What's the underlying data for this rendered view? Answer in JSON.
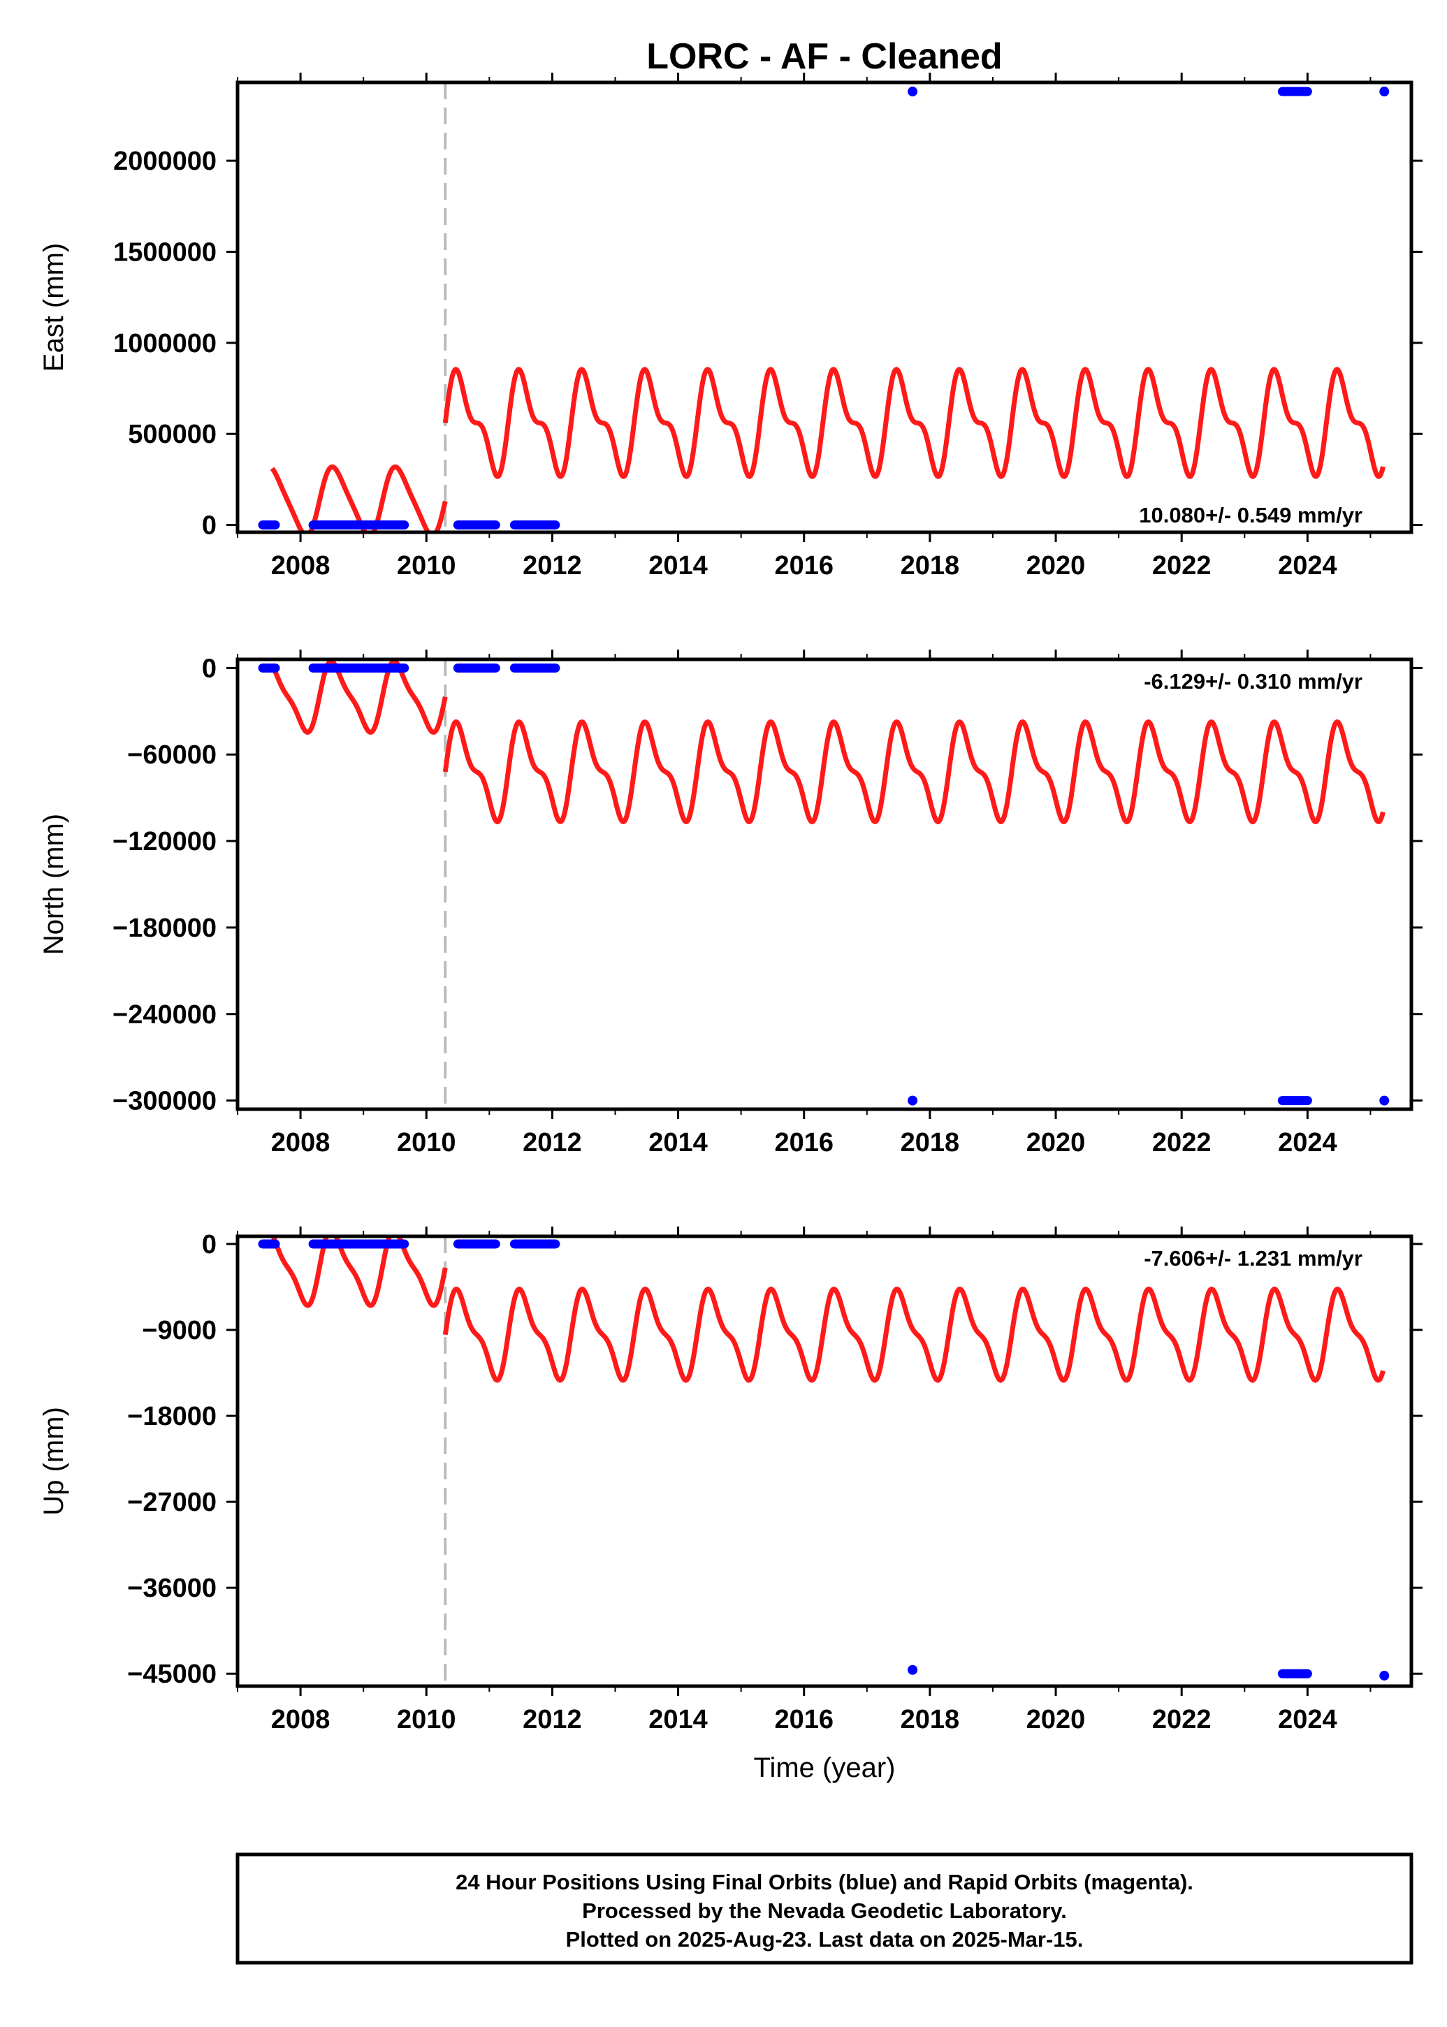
{
  "title": "LORC  - AF - Cleaned",
  "footer": {
    "lines": [
      "24 Hour Positions Using Final Orbits (blue) and Rapid Orbits (magenta).",
      "Processed by the Nevada Geodetic Laboratory.",
      "Plotted on 2025-Aug-23. Last data on 2025-Mar-15."
    ]
  },
  "colors": {
    "model": "#ff1a1a",
    "final_orbits": "#0000ff",
    "break_line": "#bbbbbb"
  },
  "chart_data": [
    {
      "type": "line",
      "component": "East",
      "ylabel": "East (mm)",
      "xlabel": "",
      "rate_label": "10.080+/- 0.549 mm/yr",
      "xlim": [
        2007.0,
        2025.65
      ],
      "ylim": [
        -40000,
        2430000
      ],
      "xticks": [
        2008,
        2010,
        2012,
        2014,
        2016,
        2018,
        2020,
        2022,
        2024
      ],
      "yticks": [
        0,
        500000,
        1000000,
        1500000,
        2000000
      ],
      "break_epoch": 2010.3,
      "model_segments": [
        {
          "start": 2007.55,
          "end": 2010.3,
          "amplitudes": [
            180000,
            30000
          ],
          "offset": 130000,
          "slope": 0
        },
        {
          "start": 2010.3,
          "end": 2025.2,
          "amplitudes": [
            230000,
            110000
          ],
          "offset": 560000,
          "slope": 0
        }
      ],
      "final_orbits": [
        {
          "start": 2007.4,
          "end": 2007.6,
          "value": 0
        },
        {
          "start": 2008.2,
          "end": 2009.65,
          "value": 0
        },
        {
          "start": 2010.5,
          "end": 2011.1,
          "value": 0
        },
        {
          "start": 2011.4,
          "end": 2012.05,
          "value": 0
        },
        {
          "start": 2017.7,
          "end": 2017.75,
          "value": 2380000
        },
        {
          "start": 2023.6,
          "end": 2024.0,
          "value": 2380000
        },
        {
          "start": 2025.2,
          "end": 2025.24,
          "value": 2380000
        }
      ]
    },
    {
      "type": "line",
      "component": "North",
      "ylabel": "North (mm)",
      "xlabel": "",
      "rate_label": "-6.129+/- 0.310 mm/yr",
      "xlim": [
        2007.0,
        2025.65
      ],
      "ylim": [
        -306000,
        6000
      ],
      "xticks": [
        2008,
        2010,
        2012,
        2014,
        2016,
        2018,
        2020,
        2022,
        2024
      ],
      "yticks": [
        0,
        -60000,
        -120000,
        -180000,
        -240000,
        -300000
      ],
      "break_epoch": 2010.3,
      "model_segments": [
        {
          "start": 2007.55,
          "end": 2010.3,
          "amplitudes": [
            22000,
            6000
          ],
          "offset": -20000,
          "slope": 0
        },
        {
          "start": 2010.3,
          "end": 2025.2,
          "amplitudes": [
            28000,
            12000
          ],
          "offset": -72000,
          "slope": 0
        }
      ],
      "final_orbits": [
        {
          "start": 2007.4,
          "end": 2007.6,
          "value": 0
        },
        {
          "start": 2008.2,
          "end": 2009.65,
          "value": 0
        },
        {
          "start": 2010.5,
          "end": 2011.1,
          "value": 0
        },
        {
          "start": 2011.4,
          "end": 2012.05,
          "value": 0
        },
        {
          "start": 2017.7,
          "end": 2017.75,
          "value": -300000
        },
        {
          "start": 2023.6,
          "end": 2024.0,
          "value": -300000
        },
        {
          "start": 2025.2,
          "end": 2025.24,
          "value": -300000
        }
      ]
    },
    {
      "type": "line",
      "component": "Up",
      "ylabel": "Up (mm)",
      "xlabel": "Time (year)",
      "rate_label": "-7.606+/- 1.231 mm/yr",
      "xlim": [
        2007.0,
        2025.65
      ],
      "ylim": [
        -46300,
        800
      ],
      "xticks": [
        2008,
        2010,
        2012,
        2014,
        2016,
        2018,
        2020,
        2022,
        2024
      ],
      "yticks": [
        0,
        -9000,
        -18000,
        -27000,
        -36000,
        -45000
      ],
      "break_epoch": 2010.3,
      "model_segments": [
        {
          "start": 2007.55,
          "end": 2010.3,
          "amplitudes": [
            3500,
            1000
          ],
          "offset": -2500,
          "slope": 0
        },
        {
          "start": 2010.3,
          "end": 2025.2,
          "amplitudes": [
            4000,
            1500
          ],
          "offset": -9500,
          "slope": 0
        }
      ],
      "final_orbits": [
        {
          "start": 2007.4,
          "end": 2007.6,
          "value": 0
        },
        {
          "start": 2008.2,
          "end": 2009.65,
          "value": 0
        },
        {
          "start": 2010.5,
          "end": 2011.1,
          "value": 0
        },
        {
          "start": 2011.4,
          "end": 2012.05,
          "value": 0
        },
        {
          "start": 2017.7,
          "end": 2017.75,
          "value": -44600
        },
        {
          "start": 2023.6,
          "end": 2024.0,
          "value": -45000
        },
        {
          "start": 2025.2,
          "end": 2025.24,
          "value": -45200
        }
      ]
    }
  ]
}
